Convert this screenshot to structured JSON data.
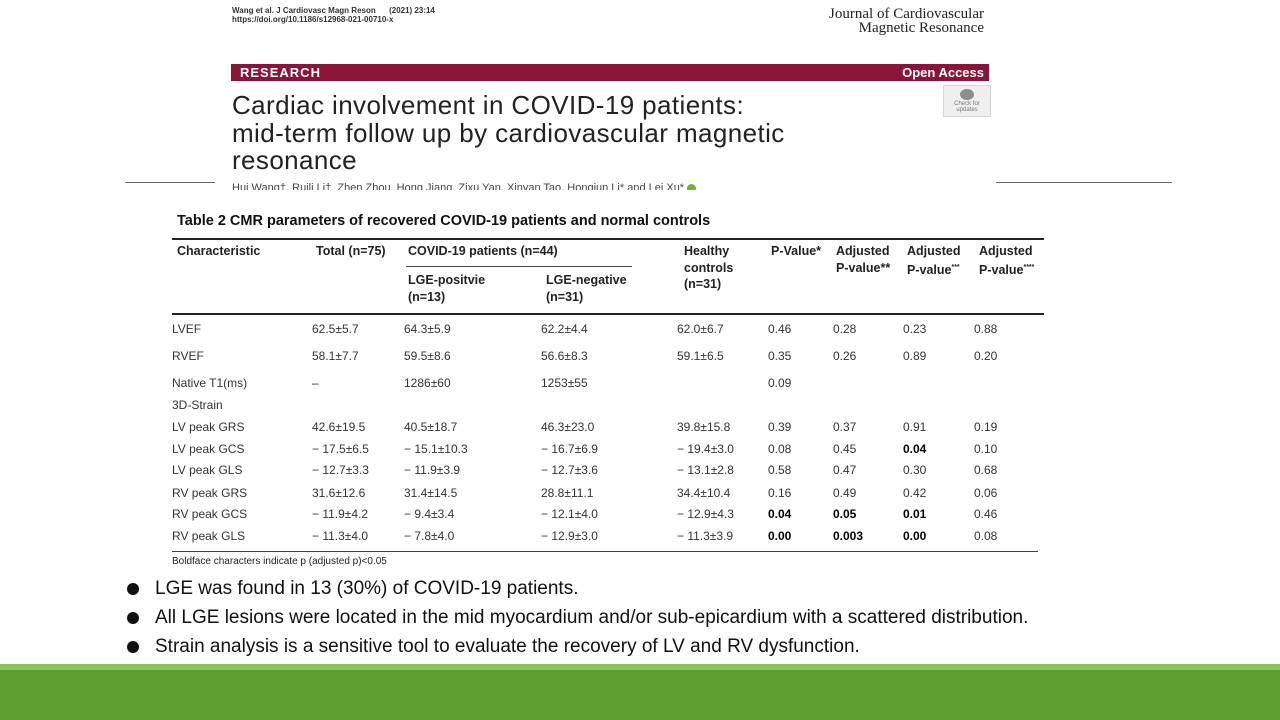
{
  "header": {
    "citation_line1": "Wang et al. J Cardiovasc Magn Reson      (2021) 23:14",
    "citation_line2": "https://doi.org/10.1186/s12968-021-00710-x",
    "journal_line1": "Journal of Cardiovascular",
    "journal_line2": "Magnetic Resonance",
    "banner_left": "RESEARCH",
    "banner_right": "Open Access",
    "banner_color": "#8a1538",
    "title_line1": "Cardiac involvement in COVID-19 patients:",
    "title_line2": "mid-term follow up by cardiovascular magnetic",
    "title_line3": "resonance",
    "check_updates": "Check for updates",
    "authors": "Hui Wang†, Ruili Li†, Zhen Zhou, Hong Jiang, Zixu Yan, Xinyan Tao, Hongjun Li* and Lei Xu*"
  },
  "table": {
    "title": "Table 2  CMR parameters of recovered COVID-19 patients and normal controls",
    "headers": {
      "characteristic": "Characteristic",
      "total": "Total (n=75)",
      "covid_group": "COVID-19 patients (n=44)",
      "lge_pos_1": "LGE-positvie",
      "lge_pos_2": "(n=13)",
      "lge_neg_1": "LGE-negative",
      "lge_neg_2": "(n=31)",
      "healthy_1": "Healthy",
      "healthy_2": "controls",
      "healthy_3": "(n=31)",
      "pvalue": "P-Value*",
      "adj1_1": "Adjusted",
      "adj1_2": "P-value**",
      "adj2_1": "Adjusted",
      "adj2_2": "P-value",
      "adj2_sup": "***",
      "adj3_1": "Adjusted",
      "adj3_2": "P-value",
      "adj3_sup": "****"
    },
    "rows": [
      {
        "label": "LVEF",
        "total": "62.5±5.7",
        "pos": "64.3±5.9",
        "neg": "62.2±4.4",
        "healthy": "62.0±6.7",
        "p": "0.46",
        "a1": "0.28",
        "a2": "0.23",
        "a3": "0.88"
      },
      {
        "label": "RVEF",
        "total": "58.1±7.7",
        "pos": "59.5±8.6",
        "neg": "56.6±8.3",
        "healthy": "59.1±6.5",
        "p": "0.35",
        "a1": "0.26",
        "a2": "0.89",
        "a3": "0.20"
      },
      {
        "label": "Native T1(ms)",
        "total": "–",
        "pos": "1286±60",
        "neg": "1253±55",
        "healthy": "",
        "p": "0.09",
        "a1": "",
        "a2": "",
        "a3": ""
      },
      {
        "label": "3D-Strain",
        "total": "",
        "pos": "",
        "neg": "",
        "healthy": "",
        "p": "",
        "a1": "",
        "a2": "",
        "a3": ""
      },
      {
        "label": "LV peak GRS",
        "total": "42.6±19.5",
        "pos": "40.5±18.7",
        "neg": "46.3±23.0",
        "healthy": "39.8±15.8",
        "p": "0.39",
        "a1": "0.37",
        "a2": "0.91",
        "a3": "0.19"
      },
      {
        "label": "LV peak GCS",
        "total": "− 17.5±6.5",
        "pos": "− 15.1±10.3",
        "neg": "− 16.7±6.9",
        "healthy": "− 19.4±3.0",
        "p": "0.08",
        "a1": "0.45",
        "a2": "0.04",
        "a3": "0.10"
      },
      {
        "label": "LV peak GLS",
        "total": "− 12.7±3.3",
        "pos": "− 11.9±3.9",
        "neg": "− 12.7±3.6",
        "healthy": "− 13.1±2.8",
        "p": "0.58",
        "a1": "0.47",
        "a2": "0.30",
        "a3": "0.68"
      },
      {
        "label": "RV peak GRS",
        "total": "31.6±12.6",
        "pos": "31.4±14.5",
        "neg": "28.8±11.1",
        "healthy": "34.4±10.4",
        "p": "0.16",
        "a1": "0.49",
        "a2": "0.42",
        "a3": "0.06"
      },
      {
        "label": "RV peak GCS",
        "total": "− 11.9±4.2",
        "pos": "− 9.4±3.4",
        "neg": "− 12.1±4.0",
        "healthy": "− 12.9±4.3",
        "p": "0.04",
        "a1": "0.05",
        "a2": "0.01",
        "a3": "0.46"
      },
      {
        "label": "RV peak GLS",
        "total": "− 11.3±4.0",
        "pos": "− 7.8±4.0",
        "neg": "− 12.9±3.0",
        "healthy": "− 11.3±3.9",
        "p": "0.00",
        "a1": "0.003",
        "a2": "0.00",
        "a3": "0.08"
      }
    ],
    "bold_cells": [
      {
        "row": 5,
        "col": "a2"
      },
      {
        "row": 8,
        "col": "p"
      },
      {
        "row": 8,
        "col": "a1"
      },
      {
        "row": 8,
        "col": "a2"
      },
      {
        "row": 9,
        "col": "p"
      },
      {
        "row": 9,
        "col": "a1"
      },
      {
        "row": 9,
        "col": "a2"
      }
    ],
    "footnote": "Boldface characters indicate p (adjusted p)<0.05"
  },
  "bullets": [
    "LGE was found in 13 (30%) of COVID-19 patients.",
    "All LGE lesions were located in the mid myocardium and/or sub-epicardium with a scattered distribution.",
    "Strain analysis is a sensitive tool to evaluate the recovery of LV and RV dysfunction."
  ],
  "colors": {
    "footer_light": "#8ac45b",
    "footer_dark": "#5e9c30"
  }
}
